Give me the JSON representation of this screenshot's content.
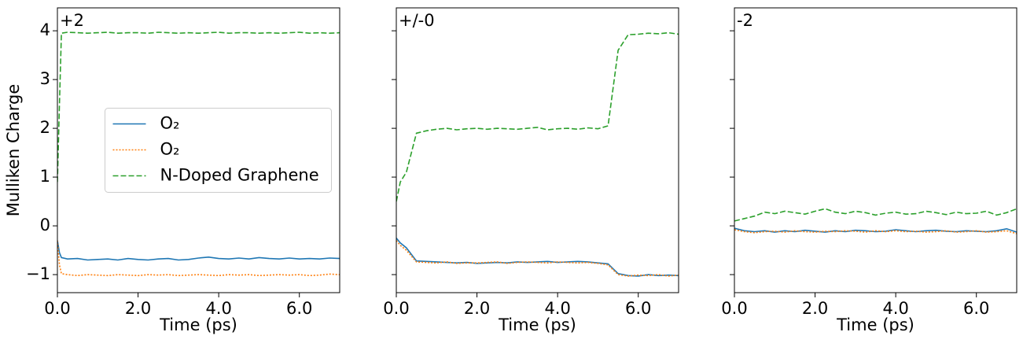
{
  "chart_data": [
    {
      "type": "line",
      "annotation": "+2",
      "ylabel": "Mulliken Charge",
      "xlabel": "Time (ps)",
      "xlim": [
        0,
        7
      ],
      "ylim": [
        -1.37,
        4.47
      ],
      "xticks": [
        {
          "value": 0,
          "label": "0.0"
        },
        {
          "value": 2,
          "label": "2.0"
        },
        {
          "value": 4,
          "label": "4.0"
        },
        {
          "value": 6,
          "label": "6.0"
        }
      ],
      "yticks": [
        {
          "value": -1,
          "label": "−1"
        },
        0,
        1,
        2,
        3,
        4
      ],
      "legend": "center",
      "x": [
        0,
        0.05,
        0.1,
        0.25,
        0.5,
        0.75,
        1,
        1.25,
        1.5,
        1.75,
        2,
        2.25,
        2.5,
        2.75,
        3,
        3.25,
        3.5,
        3.75,
        4,
        4.25,
        4.5,
        4.75,
        5,
        5.25,
        5.5,
        5.75,
        6,
        6.25,
        6.5,
        6.75,
        7
      ],
      "series": [
        {
          "name": "O₂",
          "color": "#1f77b4",
          "dash": "solid",
          "values": [
            -0.3,
            -0.55,
            -0.65,
            -0.68,
            -0.67,
            -0.7,
            -0.69,
            -0.68,
            -0.7,
            -0.67,
            -0.69,
            -0.7,
            -0.68,
            -0.67,
            -0.7,
            -0.69,
            -0.66,
            -0.64,
            -0.67,
            -0.68,
            -0.66,
            -0.68,
            -0.65,
            -0.67,
            -0.68,
            -0.66,
            -0.68,
            -0.67,
            -0.68,
            -0.66,
            -0.67
          ]
        },
        {
          "name": "O₂",
          "color": "#ff7f0e",
          "dash": "dotted",
          "values": [
            -0.3,
            -0.8,
            -0.98,
            -1.0,
            -1.02,
            -1.0,
            -1.01,
            -1.02,
            -1.0,
            -1.01,
            -1.02,
            -1.0,
            -1.01,
            -1.0,
            -1.02,
            -1.01,
            -1.0,
            -1.01,
            -1.02,
            -1.0,
            -1.01,
            -1.0,
            -1.02,
            -1.01,
            -1.0,
            -1.01,
            -1.0,
            -1.02,
            -1.01,
            -0.99,
            -1.0
          ]
        },
        {
          "name": "N-Doped Graphene",
          "color": "#2ca02c",
          "dash": "dashed",
          "values": [
            0.9,
            2.5,
            3.95,
            3.97,
            3.96,
            3.95,
            3.96,
            3.97,
            3.95,
            3.96,
            3.96,
            3.95,
            3.97,
            3.96,
            3.95,
            3.96,
            3.95,
            3.96,
            3.97,
            3.95,
            3.96,
            3.96,
            3.95,
            3.96,
            3.95,
            3.96,
            3.97,
            3.95,
            3.96,
            3.95,
            3.96
          ]
        }
      ]
    },
    {
      "type": "line",
      "annotation": "+/-0",
      "xlabel": "Time (ps)",
      "xlim": [
        0,
        7
      ],
      "ylim": [
        -1.37,
        4.47
      ],
      "xticks": [
        {
          "value": 0,
          "label": "0.0"
        },
        {
          "value": 2,
          "label": "2.0"
        },
        {
          "value": 4,
          "label": "4.0"
        },
        {
          "value": 6,
          "label": "6.0"
        }
      ],
      "yticks": [
        -1,
        0,
        1,
        2,
        3,
        4
      ],
      "x": [
        0,
        0.1,
        0.25,
        0.5,
        0.75,
        1,
        1.25,
        1.5,
        1.75,
        2,
        2.25,
        2.5,
        2.75,
        3,
        3.25,
        3.5,
        3.75,
        4,
        4.25,
        4.5,
        4.75,
        5,
        5.25,
        5.5,
        5.75,
        6,
        6.25,
        6.5,
        6.75,
        7
      ],
      "series": [
        {
          "color": "#1f77b4",
          "dash": "solid",
          "values": [
            -0.25,
            -0.35,
            -0.45,
            -0.72,
            -0.73,
            -0.74,
            -0.75,
            -0.76,
            -0.75,
            -0.77,
            -0.76,
            -0.75,
            -0.76,
            -0.74,
            -0.75,
            -0.74,
            -0.73,
            -0.75,
            -0.74,
            -0.73,
            -0.74,
            -0.76,
            -0.78,
            -0.98,
            -1.02,
            -1.03,
            -1.0,
            -1.02,
            -1.01,
            -1.02
          ]
        },
        {
          "color": "#ff7f0e",
          "dash": "dotted",
          "values": [
            -0.3,
            -0.4,
            -0.5,
            -0.74,
            -0.75,
            -0.76,
            -0.74,
            -0.77,
            -0.76,
            -0.76,
            -0.75,
            -0.74,
            -0.77,
            -0.75,
            -0.74,
            -0.75,
            -0.76,
            -0.74,
            -0.75,
            -0.76,
            -0.75,
            -0.77,
            -0.8,
            -1.0,
            -1.03,
            -1.01,
            -1.02,
            -1.0,
            -1.03,
            -1.01
          ]
        },
        {
          "color": "#2ca02c",
          "dash": "dashed",
          "values": [
            0.5,
            0.9,
            1.1,
            1.9,
            1.95,
            1.98,
            2.0,
            1.97,
            1.99,
            2.0,
            1.98,
            2.0,
            1.99,
            1.98,
            2.0,
            2.02,
            1.97,
            1.99,
            2.0,
            1.98,
            2.01,
            1.99,
            2.05,
            3.6,
            3.92,
            3.93,
            3.95,
            3.94,
            3.96,
            3.93
          ]
        }
      ]
    },
    {
      "type": "line",
      "annotation": "-2",
      "xlabel": "Time (ps)",
      "xlim": [
        0,
        7
      ],
      "ylim": [
        -1.37,
        4.47
      ],
      "xticks": [
        {
          "value": 0,
          "label": "0.0"
        },
        {
          "value": 2,
          "label": "2.0"
        },
        {
          "value": 4,
          "label": "4.0"
        },
        {
          "value": 6,
          "label": "6.0"
        }
      ],
      "yticks": [
        -1,
        0,
        1,
        2,
        3,
        4
      ],
      "x": [
        0,
        0.25,
        0.5,
        0.75,
        1,
        1.25,
        1.5,
        1.75,
        2,
        2.25,
        2.5,
        2.75,
        3,
        3.25,
        3.5,
        3.75,
        4,
        4.25,
        4.5,
        4.75,
        5,
        5.25,
        5.5,
        5.75,
        6,
        6.25,
        6.5,
        6.75,
        7
      ],
      "series": [
        {
          "color": "#1f77b4",
          "dash": "solid",
          "values": [
            -0.05,
            -0.1,
            -0.12,
            -0.1,
            -0.13,
            -0.1,
            -0.12,
            -0.09,
            -0.11,
            -0.13,
            -0.1,
            -0.12,
            -0.09,
            -0.1,
            -0.12,
            -0.11,
            -0.08,
            -0.1,
            -0.12,
            -0.1,
            -0.09,
            -0.11,
            -0.12,
            -0.1,
            -0.11,
            -0.12,
            -0.1,
            -0.06,
            -0.13
          ]
        },
        {
          "color": "#ff7f0e",
          "dash": "dotted",
          "values": [
            -0.08,
            -0.12,
            -0.14,
            -0.12,
            -0.11,
            -0.13,
            -0.1,
            -0.12,
            -0.13,
            -0.11,
            -0.12,
            -0.1,
            -0.11,
            -0.13,
            -0.1,
            -0.12,
            -0.1,
            -0.12,
            -0.11,
            -0.13,
            -0.12,
            -0.1,
            -0.13,
            -0.12,
            -0.1,
            -0.13,
            -0.12,
            -0.1,
            -0.16
          ]
        },
        {
          "color": "#2ca02c",
          "dash": "dashed",
          "values": [
            0.1,
            0.15,
            0.2,
            0.28,
            0.25,
            0.3,
            0.27,
            0.24,
            0.3,
            0.35,
            0.28,
            0.25,
            0.3,
            0.27,
            0.22,
            0.26,
            0.28,
            0.24,
            0.25,
            0.3,
            0.27,
            0.23,
            0.28,
            0.25,
            0.26,
            0.3,
            0.22,
            0.27,
            0.35
          ]
        }
      ]
    }
  ]
}
